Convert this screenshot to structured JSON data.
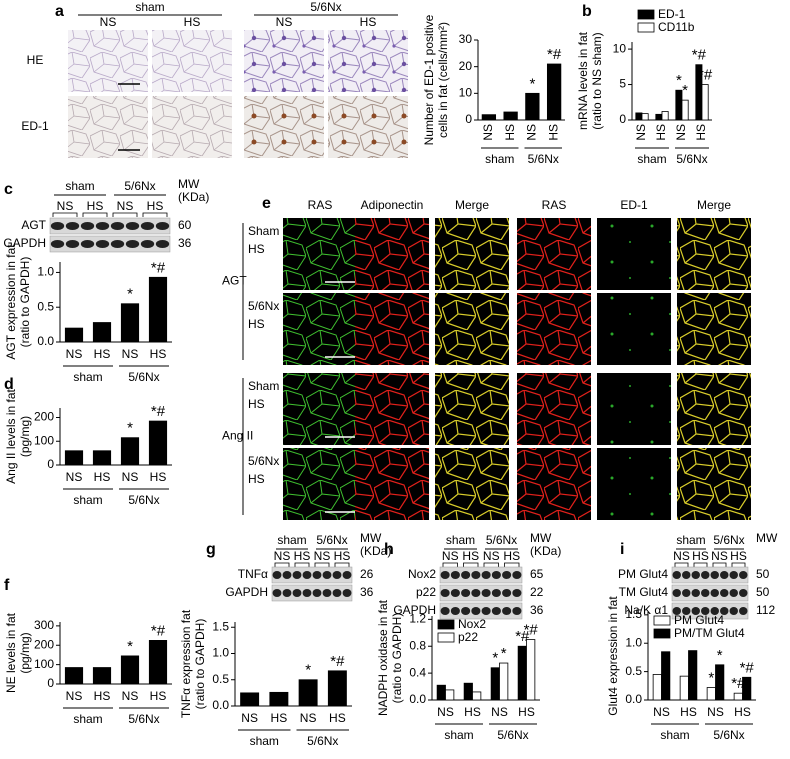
{
  "figure": {
    "panel_labels": [
      "a",
      "b",
      "c",
      "d",
      "e",
      "f",
      "g",
      "h",
      "i"
    ],
    "a_images": {
      "groups": [
        "sham",
        "5/6Nx"
      ],
      "lanes": [
        "NS",
        "HS",
        "NS",
        "HS"
      ],
      "rows": [
        "HE",
        "ED-1"
      ]
    },
    "e_images": {
      "columns": [
        "RAS",
        "Adiponectin",
        "Merge",
        "RAS",
        "ED-1",
        "Merge"
      ],
      "rows": [
        [
          "Sham",
          "HS"
        ],
        [
          "5/6Nx",
          "HS"
        ],
        [
          "Sham",
          "HS"
        ],
        [
          "5/6Nx",
          "HS"
        ]
      ],
      "groups": [
        "AGT",
        "Ang II"
      ]
    },
    "blots": [
      {
        "groups": [
          "sham",
          "5/6Nx"
        ],
        "lanes": [
          "NS",
          "HS",
          "NS",
          "HS"
        ],
        "mw_header": [
          "MW",
          "(KDa)"
        ],
        "rows": [
          {
            "name": "AGT",
            "mw": "60"
          },
          {
            "name": "GAPDH",
            "mw": "36"
          }
        ]
      },
      {
        "groups": [
          "sham",
          "5/6Nx"
        ],
        "lanes": [
          "NS",
          "HS",
          "NS",
          "HS"
        ],
        "mw_header": [
          "MW",
          "(KDa)"
        ],
        "rows": [
          {
            "name": "TNFα",
            "mw": "26"
          },
          {
            "name": "GAPDH",
            "mw": "36"
          }
        ]
      },
      {
        "groups": [
          "sham",
          "5/6Nx"
        ],
        "lanes": [
          "NS",
          "HS",
          "NS",
          "HS"
        ],
        "mw_header": [
          "MW",
          "(KDa)"
        ],
        "rows": [
          {
            "name": "Nox2",
            "mw": "65"
          },
          {
            "name": "p22",
            "mw": "22"
          },
          {
            "name": "GAPDH",
            "mw": "36"
          }
        ]
      },
      {
        "groups": [
          "sham",
          "5/6Nx"
        ],
        "lanes": [
          "NS",
          "HS",
          "NS",
          "HS"
        ],
        "mw_header": [
          "MW"
        ],
        "rows": [
          {
            "name": "PM Glut4",
            "mw": "50"
          },
          {
            "name": "TM Glut4",
            "mw": "50"
          },
          {
            "name": "Na/K α1",
            "mw": "112"
          }
        ]
      }
    ]
  },
  "chart_data": [
    {
      "type": "bar",
      "ylabel": [
        "Number of ED-1 positive",
        "cells in fat (cells/mm²)"
      ],
      "categories": [
        "NS",
        "HS",
        "NS",
        "HS"
      ],
      "groups": [
        "sham",
        "5/6Nx"
      ],
      "rotate_labels": true,
      "values": [
        2,
        3,
        10,
        21
      ],
      "annotations": [
        null,
        null,
        "*",
        "*#"
      ],
      "color": "#000000",
      "ylim": [
        0,
        30
      ],
      "yticks": [
        0,
        10,
        20,
        30
      ]
    },
    {
      "type": "bar",
      "ylabel": [
        "mRNA levels in fat",
        "(ratio to NS sham)"
      ],
      "categories": [
        "NS",
        "HS",
        "NS",
        "HS"
      ],
      "groups": [
        "sham",
        "5/6Nx"
      ],
      "rotate_labels": true,
      "legend": "top",
      "series": [
        {
          "name": "ED-1",
          "color": "#000000",
          "values": [
            1,
            0.8,
            4.2,
            7.8
          ],
          "annotations": [
            null,
            null,
            "*",
            "*#"
          ]
        },
        {
          "name": "CD11b",
          "color": "#ffffff",
          "values": [
            0.9,
            1.2,
            2.8,
            5
          ],
          "annotations": [
            null,
            null,
            "*",
            "*#"
          ]
        }
      ],
      "ylim": [
        0,
        11
      ],
      "yticks": [
        0,
        5,
        10
      ]
    },
    {
      "type": "bar",
      "ylabel": [
        "AGT expression in fat",
        "(ratio to GAPDH)"
      ],
      "categories": [
        "NS",
        "HS",
        "NS",
        "HS"
      ],
      "groups": [
        "sham",
        "5/6Nx"
      ],
      "values": [
        0.2,
        0.28,
        0.55,
        0.93
      ],
      "annotations": [
        null,
        null,
        "*",
        "*#"
      ],
      "color": "#000000",
      "ylim": [
        0,
        1.15
      ],
      "yticks": [
        {
          "value": 0,
          "label": "0.0"
        },
        {
          "value": 0.5,
          "label": "0.5"
        },
        {
          "value": 1,
          "label": "1.0"
        }
      ]
    },
    {
      "type": "bar",
      "ylabel": [
        "Ang II levels in fat",
        "(pg/mg)"
      ],
      "categories": [
        "NS",
        "HS",
        "NS",
        "HS"
      ],
      "groups": [
        "sham",
        "5/6Nx"
      ],
      "values": [
        60,
        60,
        115,
        185
      ],
      "annotations": [
        null,
        null,
        "*",
        "*#"
      ],
      "color": "#000000",
      "ylim": [
        0,
        240
      ],
      "yticks": [
        0,
        100,
        200
      ]
    },
    {
      "type": "bar",
      "ylabel": [
        "NE levels in fat",
        "(pg/mg)"
      ],
      "categories": [
        "NS",
        "HS",
        "NS",
        "HS"
      ],
      "groups": [
        "sham",
        "5/6Nx"
      ],
      "values": [
        85,
        85,
        145,
        225
      ],
      "annotations": [
        null,
        null,
        "*",
        "*#"
      ],
      "color": "#000000",
      "ylim": [
        0,
        320
      ],
      "yticks": [
        0,
        100,
        200,
        300
      ]
    },
    {
      "type": "bar",
      "ylabel": [
        "TNFα expression fat",
        "(ratio to GAPDH)"
      ],
      "categories": [
        "NS",
        "HS",
        "NS",
        "HS"
      ],
      "groups": [
        "sham",
        "5/6Nx"
      ],
      "values": [
        0.25,
        0.26,
        0.5,
        0.67
      ],
      "annotations": [
        null,
        null,
        "*",
        "*#"
      ],
      "color": "#000000",
      "ylim": [
        0,
        1.6
      ],
      "yticks": [
        {
          "value": 0,
          "label": "0.0"
        },
        {
          "value": 0.5,
          "label": "0.5"
        },
        {
          "value": 1,
          "label": "1.0"
        },
        {
          "value": 1.5,
          "label": "1.5"
        }
      ]
    },
    {
      "type": "bar",
      "ylabel": [
        "NADPH oxidase in fat",
        "(ratio to GAPDH)"
      ],
      "categories": [
        "NS",
        "HS",
        "NS",
        "HS"
      ],
      "groups": [
        "sham",
        "5/6Nx"
      ],
      "legend": "upper left",
      "series": [
        {
          "name": "Nox2",
          "color": "#000000",
          "values": [
            0.22,
            0.25,
            0.48,
            0.8
          ],
          "annotations": [
            null,
            null,
            "*",
            "*#"
          ]
        },
        {
          "name": "p22",
          "color": "#ffffff",
          "values": [
            0.15,
            0.12,
            0.55,
            0.9
          ],
          "annotations": [
            null,
            null,
            "*",
            "*#"
          ]
        }
      ],
      "ylim": [
        0,
        1.25
      ],
      "yticks": [
        {
          "value": 0,
          "label": "0.0"
        },
        {
          "value": 0.4,
          "label": "0.4"
        },
        {
          "value": 0.8,
          "label": "0.8"
        },
        {
          "value": 1.2,
          "label": "1.2"
        }
      ]
    },
    {
      "type": "bar",
      "ylabel": [
        "Glut4 expression in fat"
      ],
      "categories": [
        "NS",
        "HS",
        "NS",
        "HS"
      ],
      "groups": [
        "sham",
        "5/6Nx"
      ],
      "legend": "upper left",
      "series": [
        {
          "name": "PM Glut4",
          "color": "#ffffff",
          "values": [
            0.45,
            0.42,
            0.22,
            0.12
          ],
          "annotations": [
            null,
            null,
            "*",
            "*#"
          ]
        },
        {
          "name": "PM/TM Glut4",
          "color": "#000000",
          "values": [
            0.85,
            0.87,
            0.62,
            0.4
          ],
          "annotations": [
            null,
            null,
            "*",
            "*#"
          ]
        }
      ],
      "ylim": [
        0,
        1.55
      ],
      "yticks": [
        {
          "value": 0,
          "label": "0.0"
        },
        {
          "value": 0.5,
          "label": "0.5"
        },
        {
          "value": 1,
          "label": "1.0"
        },
        {
          "value": 1.5,
          "label": "1.5"
        }
      ]
    }
  ]
}
